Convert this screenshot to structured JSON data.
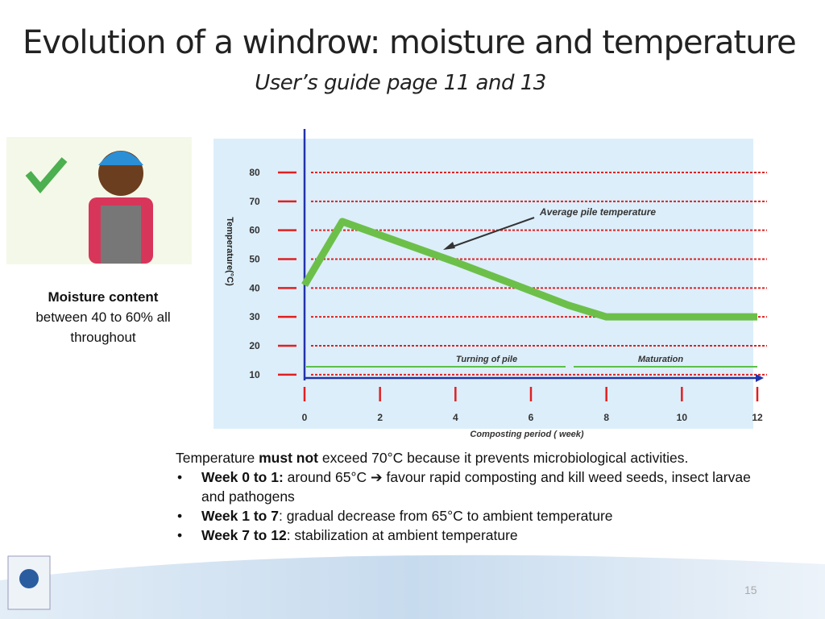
{
  "title": "Evolution of a windrow: moisture and temperature",
  "subtitle": "User’s guide page 11 and 13",
  "moisture": {
    "bold": "Moisture content",
    "text": "between 40 to 60% all throughout"
  },
  "intro": {
    "before": "Temperature ",
    "bold": "must not",
    "after": " exceed 70°C because it prevents microbiological activities."
  },
  "bullets": [
    {
      "bold": "Week 0 to 1:",
      "text": " around 65°C ➔ favour rapid composting and kill weed seeds, insect larvae and pathogens"
    },
    {
      "bold": "Week 1 to 7",
      "text": ": gradual decrease from 65°C to ambient temperature"
    },
    {
      "bold": "Week 7 to 12",
      "text": ": stabilization at ambient temperature"
    }
  ],
  "page_number": "15",
  "chart_data": {
    "type": "line",
    "ylabel": "Temperature(°C)",
    "xlabel": "Composting period ( week)",
    "x": [
      0,
      1,
      4,
      7,
      8,
      12
    ],
    "values": [
      41,
      63,
      49,
      34,
      30,
      30
    ],
    "color": "#6cc04a",
    "xlim": [
      0,
      12
    ],
    "xticks": [
      0,
      2,
      4,
      6,
      8,
      10,
      12
    ],
    "ylim": [
      8,
      92
    ],
    "yticks": [
      10,
      20,
      30,
      40,
      50,
      60,
      70,
      80
    ],
    "grid": true,
    "annotations": [
      "Average pile temperature",
      "Turning of pile",
      "Maturation"
    ]
  }
}
